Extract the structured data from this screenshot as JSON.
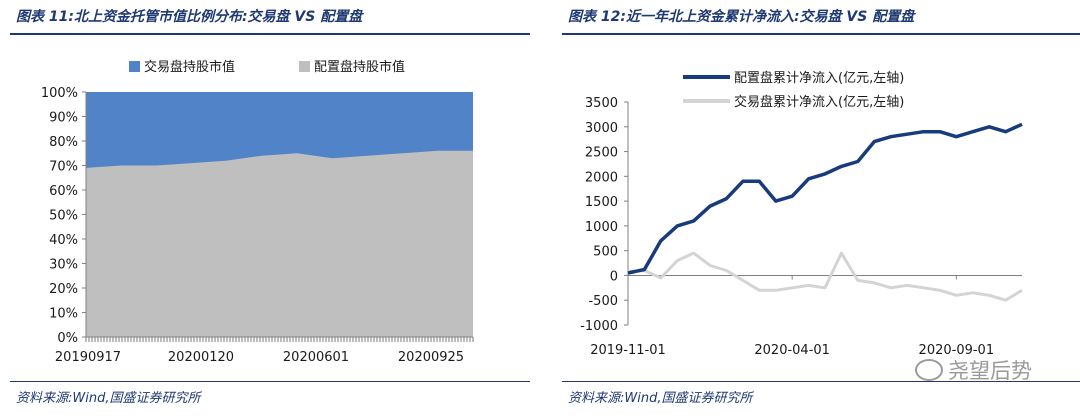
{
  "left": {
    "title": "图表 11:北上资金托管市值比例分布:交易盘 VS 配置盘",
    "source": "资料来源:Wind,国盛证券研究所"
  },
  "right": {
    "title": "图表 12:近一年北上资金累计净流入:交易盘 VS 配置盘",
    "source": "资料来源:Wind,国盛证券研究所"
  },
  "watermark": {
    "text": "尧望后势",
    "icon": "wechat-icon"
  },
  "colors": {
    "trading_share": "#5083c8",
    "allocation_share": "#bfbfbf",
    "allocation_flow": "#173b7c",
    "trading_flow": "#d4d4d4",
    "title": "#1f3a73"
  },
  "chart_data": [
    {
      "type": "area",
      "stacking": "percent",
      "x": [
        "20190917",
        "20191101",
        "20191201",
        "20200120",
        "20200301",
        "20200415",
        "20200601",
        "20200715",
        "20200901",
        "20200925",
        "20201101",
        "20201215"
      ],
      "xticks": [
        "20190917",
        "20200120",
        "20200601",
        "20200925"
      ],
      "yticks": [
        "0%",
        "10%",
        "20%",
        "30%",
        "40%",
        "50%",
        "60%",
        "70%",
        "80%",
        "90%",
        "100%"
      ],
      "ylim": [
        0,
        100
      ],
      "legend_position": "top",
      "grid": false,
      "series": [
        {
          "name": "交易盘持股市值",
          "values": [
            31,
            30,
            30,
            29,
            28,
            26,
            25,
            27,
            26,
            25,
            24,
            24
          ]
        },
        {
          "name": "配置盘持股市值",
          "values": [
            69,
            70,
            70,
            71,
            72,
            74,
            75,
            73,
            74,
            75,
            76,
            76
          ]
        }
      ]
    },
    {
      "type": "line",
      "x": [
        "2019-11-01",
        "2019-11-15",
        "2019-12-01",
        "2019-12-15",
        "2020-01-01",
        "2020-01-15",
        "2020-02-01",
        "2020-02-15",
        "2020-03-01",
        "2020-03-15",
        "2020-04-01",
        "2020-04-15",
        "2020-05-01",
        "2020-05-15",
        "2020-06-01",
        "2020-06-15",
        "2020-07-01",
        "2020-07-15",
        "2020-08-01",
        "2020-08-15",
        "2020-09-01",
        "2020-09-15",
        "2020-10-01",
        "2020-10-15",
        "2020-11-01"
      ],
      "xticks": [
        "2019-11-01",
        "2020-04-01",
        "2020-09-01"
      ],
      "yticks": [
        "-1000",
        "-500",
        "0",
        "500",
        "1000",
        "1500",
        "2000",
        "2500",
        "3000",
        "3500"
      ],
      "ylim": [
        -1000,
        3500
      ],
      "legend_position": "top",
      "grid": false,
      "series": [
        {
          "name": "配置盘累计净流入(亿元,左轴)",
          "values": [
            50,
            120,
            700,
            1000,
            1100,
            1400,
            1550,
            1900,
            1900,
            1500,
            1600,
            1950,
            2050,
            2200,
            2300,
            2700,
            2800,
            2850,
            2900,
            2900,
            2800,
            2900,
            3000,
            2900,
            3050
          ]
        },
        {
          "name": "交易盘累计净流入(亿元,左轴)",
          "values": [
            80,
            100,
            -50,
            300,
            450,
            200,
            100,
            -100,
            -300,
            -300,
            -250,
            -200,
            -250,
            450,
            -100,
            -150,
            -250,
            -200,
            -250,
            -300,
            -400,
            -350,
            -400,
            -500,
            -300
          ]
        }
      ]
    }
  ]
}
